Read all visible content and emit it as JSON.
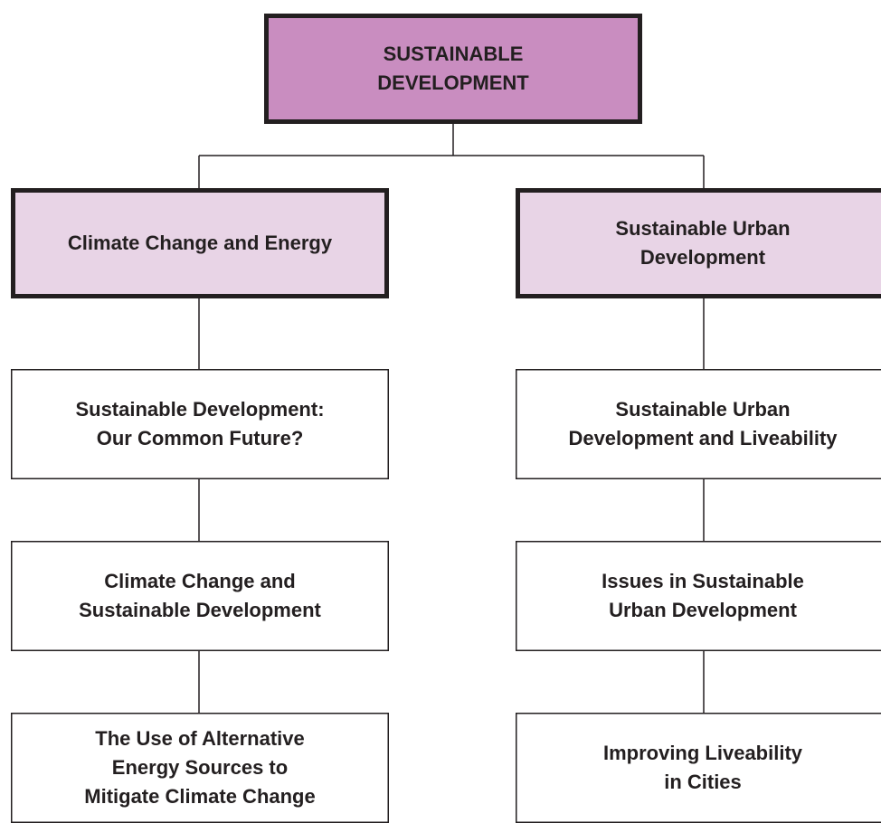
{
  "root": {
    "lines": [
      "SUSTAINABLE",
      "DEVELOPMENT"
    ]
  },
  "branches": [
    {
      "lines": [
        "Climate Change and Energy"
      ],
      "children": [
        {
          "lines": [
            "Sustainable Development:",
            "Our Common Future?"
          ]
        },
        {
          "lines": [
            "Climate Change and",
            "Sustainable Development"
          ]
        },
        {
          "lines": [
            "The Use of Alternative",
            "Energy Sources to",
            "Mitigate Climate Change"
          ]
        }
      ]
    },
    {
      "lines": [
        "Sustainable Urban",
        "Development"
      ],
      "children": [
        {
          "lines": [
            "Sustainable Urban",
            "Development and Liveability"
          ]
        },
        {
          "lines": [
            "Issues in Sustainable",
            "Urban Development"
          ]
        },
        {
          "lines": [
            "Improving Liveability",
            "in Cities"
          ]
        }
      ]
    }
  ]
}
